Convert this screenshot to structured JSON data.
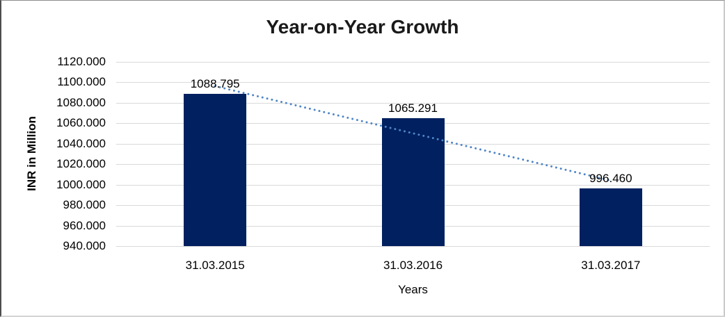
{
  "chart_data": {
    "type": "bar",
    "title": "Year-on-Year Growth",
    "xlabel": "Years",
    "ylabel": "INR in Million",
    "categories": [
      "31.03.2015",
      "31.03.2016",
      "31.03.2017"
    ],
    "values": [
      1088.795,
      1065.291,
      996.46
    ],
    "data_labels": [
      "1088.795",
      "1065.291",
      "996.460"
    ],
    "ylim": [
      940,
      1120
    ],
    "ytick_step": 20,
    "yticks": [
      "1120.000",
      "1100.000",
      "1080.000",
      "1060.000",
      "1040.000",
      "1020.000",
      "1000.000",
      "980.000",
      "960.000",
      "940.000"
    ],
    "grid": "horizontal",
    "legend_position": "none",
    "bar_color": "#002060",
    "gridline_color": "#d9d9d9",
    "trendline": {
      "type": "linear",
      "style": "dotted",
      "color": "#4f86c6"
    }
  }
}
